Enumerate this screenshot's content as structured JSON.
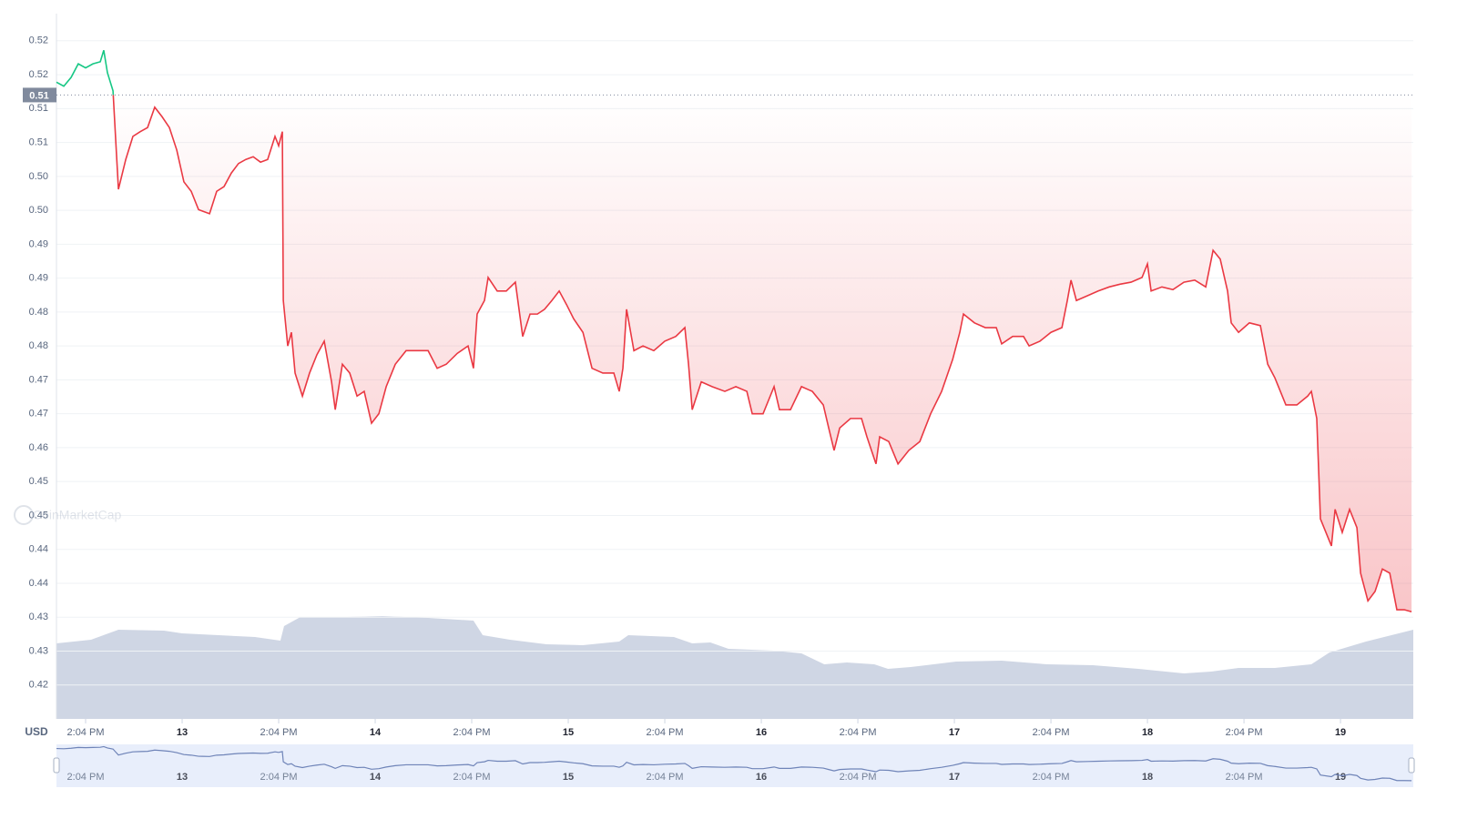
{
  "chart_data": {
    "type": "line",
    "currency_label": "USD",
    "watermark": "CoinMarketCap",
    "xlim": [
      12.349,
      19.377
    ],
    "ylim": [
      0.42,
      0.524
    ],
    "xticks": [
      {
        "value": 12.5,
        "label": "2:04 PM"
      },
      {
        "value": 13,
        "label": "13"
      },
      {
        "value": 13.5,
        "label": "2:04 PM"
      },
      {
        "value": 14,
        "label": "14"
      },
      {
        "value": 14.5,
        "label": "2:04 PM"
      },
      {
        "value": 15,
        "label": "15"
      },
      {
        "value": 15.5,
        "label": "2:04 PM"
      },
      {
        "value": 16,
        "label": "16"
      },
      {
        "value": 16.5,
        "label": "2:04 PM"
      },
      {
        "value": 17,
        "label": "17"
      },
      {
        "value": 17.5,
        "label": "2:04 PM"
      },
      {
        "value": 18,
        "label": "18"
      },
      {
        "value": 18.5,
        "label": "2:04 PM"
      },
      {
        "value": 19,
        "label": "19"
      }
    ],
    "yticks": [
      {
        "value": 0.52,
        "label": "0.52"
      },
      {
        "value": 0.515,
        "label": "0.52"
      },
      {
        "value": 0.51,
        "label": "0.51"
      },
      {
        "value": 0.505,
        "label": "0.51"
      },
      {
        "value": 0.5,
        "label": "0.50"
      },
      {
        "value": 0.495,
        "label": "0.50"
      },
      {
        "value": 0.49,
        "label": "0.49"
      },
      {
        "value": 0.485,
        "label": "0.49"
      },
      {
        "value": 0.48,
        "label": "0.48"
      },
      {
        "value": 0.475,
        "label": "0.48"
      },
      {
        "value": 0.47,
        "label": "0.47"
      },
      {
        "value": 0.465,
        "label": "0.47"
      },
      {
        "value": 0.46,
        "label": "0.46"
      },
      {
        "value": 0.455,
        "label": "0.45"
      },
      {
        "value": 0.45,
        "label": "0.45"
      },
      {
        "value": 0.445,
        "label": "0.44"
      },
      {
        "value": 0.44,
        "label": "0.44"
      },
      {
        "value": 0.435,
        "label": "0.43"
      },
      {
        "value": 0.43,
        "label": "0.43"
      },
      {
        "value": 0.425,
        "label": "0.42"
      }
    ],
    "grid": true,
    "current_price": {
      "value": 0.512,
      "label": "0.51"
    },
    "price": {
      "color_up": "#16c784",
      "color_down": "#ea3943",
      "x": [
        12.349,
        12.387,
        12.425,
        12.462,
        12.5,
        12.538,
        12.576,
        12.594,
        12.613,
        12.642,
        12.66,
        12.67,
        12.708,
        12.745,
        12.783,
        12.821,
        12.858,
        12.896,
        12.934,
        12.972,
        13.009,
        13.047,
        13.085,
        13.104,
        13.142,
        13.179,
        13.217,
        13.255,
        13.292,
        13.33,
        13.368,
        13.406,
        13.443,
        13.481,
        13.5,
        13.519,
        13.524,
        13.547,
        13.566,
        13.585,
        13.623,
        13.66,
        13.698,
        13.736,
        13.774,
        13.793,
        13.83,
        13.868,
        13.906,
        13.943,
        13.981,
        14.019,
        14.057,
        14.104,
        14.16,
        14.217,
        14.274,
        14.321,
        14.368,
        14.425,
        14.481,
        14.509,
        14.528,
        14.566,
        14.585,
        14.632,
        14.679,
        14.726,
        14.764,
        14.802,
        14.84,
        14.877,
        14.915,
        14.953,
        14.991,
        15.028,
        15.076,
        15.123,
        15.179,
        15.236,
        15.264,
        15.283,
        15.302,
        15.34,
        15.387,
        15.443,
        15.5,
        15.557,
        15.604,
        15.623,
        15.642,
        15.689,
        15.745,
        15.811,
        15.868,
        15.925,
        15.953,
        16.009,
        16.066,
        16.094,
        16.151,
        16.208,
        16.264,
        16.321,
        16.349,
        16.377,
        16.406,
        16.462,
        16.519,
        16.547,
        16.594,
        16.613,
        16.66,
        16.708,
        16.764,
        16.821,
        16.877,
        16.934,
        16.991,
        17.028,
        17.047,
        17.104,
        17.16,
        17.217,
        17.245,
        17.302,
        17.358,
        17.387,
        17.443,
        17.5,
        17.557,
        17.585,
        17.604,
        17.632,
        17.689,
        17.745,
        17.802,
        17.858,
        17.915,
        17.972,
        18.0,
        18.019,
        18.075,
        18.132,
        18.189,
        18.245,
        18.302,
        18.34,
        18.377,
        18.415,
        18.434,
        18.472,
        18.528,
        18.585,
        18.623,
        18.66,
        18.717,
        18.774,
        18.83,
        18.849,
        18.877,
        18.896,
        18.953,
        18.972,
        19.009,
        19.047,
        19.085,
        19.104,
        19.142,
        19.179,
        19.217,
        19.255,
        19.292,
        19.33,
        19.368
      ],
      "values": [
        0.5139,
        0.5133,
        0.5146,
        0.5166,
        0.516,
        0.5166,
        0.5169,
        0.5186,
        0.5153,
        0.5126,
        0.5032,
        0.4981,
        0.5025,
        0.5059,
        0.5066,
        0.5072,
        0.5102,
        0.5088,
        0.5072,
        0.5039,
        0.4992,
        0.4978,
        0.4951,
        0.4949,
        0.4945,
        0.4978,
        0.4985,
        0.5005,
        0.5019,
        0.5025,
        0.5029,
        0.5021,
        0.5025,
        0.5059,
        0.5045,
        0.5066,
        0.4817,
        0.475,
        0.477,
        0.471,
        0.4676,
        0.471,
        0.4737,
        0.4757,
        0.4697,
        0.4656,
        0.4723,
        0.471,
        0.4676,
        0.4683,
        0.4636,
        0.465,
        0.469,
        0.4723,
        0.4743,
        0.4743,
        0.4743,
        0.4717,
        0.4723,
        0.4739,
        0.475,
        0.4717,
        0.4797,
        0.4817,
        0.4851,
        0.4831,
        0.4831,
        0.4844,
        0.4764,
        0.4797,
        0.4797,
        0.4804,
        0.4817,
        0.4831,
        0.4811,
        0.479,
        0.477,
        0.4717,
        0.471,
        0.471,
        0.4683,
        0.4717,
        0.4804,
        0.4743,
        0.475,
        0.4743,
        0.4757,
        0.4764,
        0.4777,
        0.4723,
        0.4656,
        0.4697,
        0.469,
        0.4683,
        0.469,
        0.4683,
        0.465,
        0.465,
        0.469,
        0.4656,
        0.4656,
        0.469,
        0.4683,
        0.4663,
        0.4629,
        0.4596,
        0.4629,
        0.4643,
        0.4643,
        0.4616,
        0.4576,
        0.4616,
        0.4609,
        0.4576,
        0.4596,
        0.4609,
        0.465,
        0.4683,
        0.473,
        0.477,
        0.4797,
        0.4784,
        0.4777,
        0.4777,
        0.4753,
        0.4764,
        0.4764,
        0.475,
        0.4757,
        0.477,
        0.4777,
        0.4817,
        0.4847,
        0.4817,
        0.4824,
        0.4831,
        0.4837,
        0.4841,
        0.4844,
        0.4851,
        0.4871,
        0.4831,
        0.4837,
        0.4833,
        0.4844,
        0.4847,
        0.4837,
        0.4891,
        0.4878,
        0.4831,
        0.4784,
        0.477,
        0.4784,
        0.478,
        0.4723,
        0.4703,
        0.4663,
        0.4663,
        0.4676,
        0.4683,
        0.4643,
        0.4495,
        0.4455,
        0.4509,
        0.4475,
        0.4509,
        0.4482,
        0.4415,
        0.4374,
        0.4388,
        0.4421,
        0.4415,
        0.4361,
        0.4361,
        0.4358
      ]
    },
    "volume": {
      "color": "#cfd6e4",
      "ylim": [
        0,
        775
      ],
      "x": [
        12.349,
        12.528,
        12.67,
        12.906,
        13.0,
        13.189,
        13.377,
        13.509,
        13.528,
        13.613,
        13.849,
        14.038,
        14.274,
        14.509,
        14.557,
        14.698,
        14.887,
        15.075,
        15.264,
        15.311,
        15.547,
        15.642,
        15.736,
        15.83,
        16.066,
        16.208,
        16.326,
        16.443,
        16.585,
        16.656,
        16.774,
        17.009,
        17.245,
        17.481,
        17.717,
        17.953,
        18.189,
        18.33,
        18.472,
        18.66,
        18.849,
        18.943,
        19.132,
        19.377
      ],
      "values": [
        83,
        87,
        98,
        97,
        94,
        92,
        90,
        86,
        102,
        112,
        112,
        113,
        111,
        108,
        92,
        87,
        82,
        81,
        85,
        92,
        90,
        83,
        84,
        77,
        75,
        72,
        60,
        62,
        60,
        55,
        57,
        63,
        64,
        60,
        59,
        55,
        50,
        52,
        56,
        56,
        60,
        73,
        85,
        98
      ]
    }
  }
}
